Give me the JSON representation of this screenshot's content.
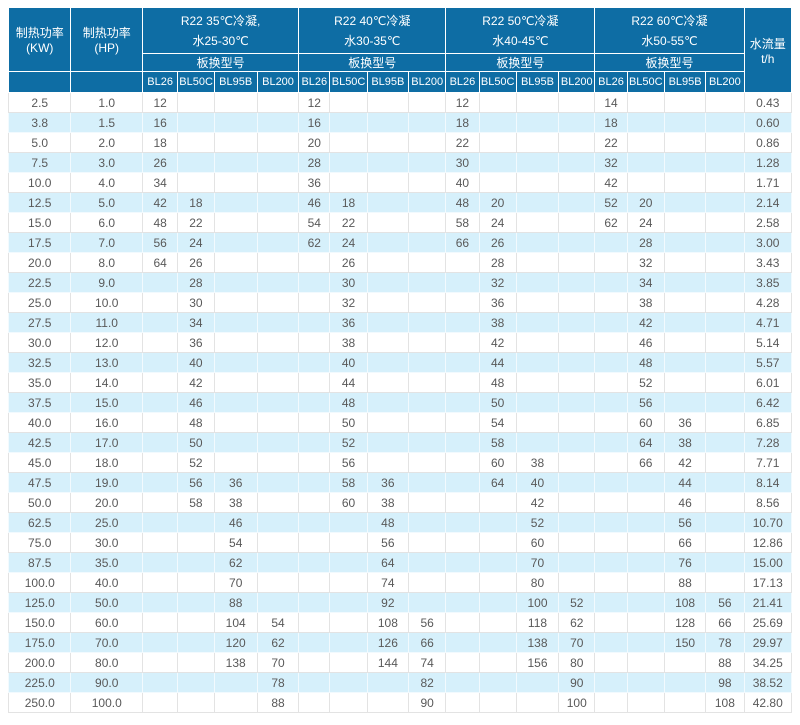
{
  "colors": {
    "header_bg": "#0e6da4",
    "alt_row_bg": "#d6f0fb",
    "grid_line": "#e3e3e3",
    "outer_border": "#c9c9c9",
    "body_text": "#595959"
  },
  "table": {
    "col1_header": "制热功率(KW)",
    "col2_header": "制热功率(HP)",
    "flow_header": "水流量t/h",
    "model_row_label": "板换型号",
    "groups": [
      {
        "title_line1": "R22 35℃冷凝,",
        "title_line2": "水25-30℃"
      },
      {
        "title_line1": "R22 40℃冷凝",
        "title_line2": "水30-35℃"
      },
      {
        "title_line1": "R22 50℃冷凝",
        "title_line2": "水40-45℃"
      },
      {
        "title_line1": "R22 60℃冷凝",
        "title_line2": "水50-55℃"
      }
    ],
    "sub_columns": [
      "BL26",
      "BL50C",
      "BL95B",
      "BL200"
    ],
    "rows": [
      {
        "kw": "2.5",
        "hp": "1.0",
        "g1": [
          "12",
          "",
          "",
          ""
        ],
        "g2": [
          "12",
          "",
          "",
          ""
        ],
        "g3": [
          "12",
          "",
          "",
          ""
        ],
        "g4": [
          "14",
          "",
          "",
          ""
        ],
        "flow": "0.43"
      },
      {
        "kw": "3.8",
        "hp": "1.5",
        "g1": [
          "16",
          "",
          "",
          ""
        ],
        "g2": [
          "16",
          "",
          "",
          ""
        ],
        "g3": [
          "18",
          "",
          "",
          ""
        ],
        "g4": [
          "18",
          "",
          "",
          ""
        ],
        "flow": "0.60"
      },
      {
        "kw": "5.0",
        "hp": "2.0",
        "g1": [
          "18",
          "",
          "",
          ""
        ],
        "g2": [
          "20",
          "",
          "",
          ""
        ],
        "g3": [
          "22",
          "",
          "",
          ""
        ],
        "g4": [
          "22",
          "",
          "",
          ""
        ],
        "flow": "0.86"
      },
      {
        "kw": "7.5",
        "hp": "3.0",
        "g1": [
          "26",
          "",
          "",
          ""
        ],
        "g2": [
          "28",
          "",
          "",
          ""
        ],
        "g3": [
          "30",
          "",
          "",
          ""
        ],
        "g4": [
          "32",
          "",
          "",
          ""
        ],
        "flow": "1.28"
      },
      {
        "kw": "10.0",
        "hp": "4.0",
        "g1": [
          "34",
          "",
          "",
          ""
        ],
        "g2": [
          "36",
          "",
          "",
          ""
        ],
        "g3": [
          "40",
          "",
          "",
          ""
        ],
        "g4": [
          "42",
          "",
          "",
          ""
        ],
        "flow": "1.71"
      },
      {
        "kw": "12.5",
        "hp": "5.0",
        "g1": [
          "42",
          "18",
          "",
          ""
        ],
        "g2": [
          "46",
          "18",
          "",
          ""
        ],
        "g3": [
          "48",
          "20",
          "",
          ""
        ],
        "g4": [
          "52",
          "20",
          "",
          ""
        ],
        "flow": "2.14"
      },
      {
        "kw": "15.0",
        "hp": "6.0",
        "g1": [
          "48",
          "22",
          "",
          ""
        ],
        "g2": [
          "54",
          "22",
          "",
          ""
        ],
        "g3": [
          "58",
          "24",
          "",
          ""
        ],
        "g4": [
          "62",
          "24",
          "",
          ""
        ],
        "flow": "2.58"
      },
      {
        "kw": "17.5",
        "hp": "7.0",
        "g1": [
          "56",
          "24",
          "",
          ""
        ],
        "g2": [
          "62",
          "24",
          "",
          ""
        ],
        "g3": [
          "66",
          "26",
          "",
          ""
        ],
        "g4": [
          "",
          "28",
          "",
          ""
        ],
        "flow": "3.00"
      },
      {
        "kw": "20.0",
        "hp": "8.0",
        "g1": [
          "64",
          "26",
          "",
          ""
        ],
        "g2": [
          "",
          "26",
          "",
          ""
        ],
        "g3": [
          "",
          "28",
          "",
          ""
        ],
        "g4": [
          "",
          "32",
          "",
          ""
        ],
        "flow": "3.43"
      },
      {
        "kw": "22.5",
        "hp": "9.0",
        "g1": [
          "",
          "28",
          "",
          ""
        ],
        "g2": [
          "",
          "30",
          "",
          ""
        ],
        "g3": [
          "",
          "32",
          "",
          ""
        ],
        "g4": [
          "",
          "34",
          "",
          ""
        ],
        "flow": "3.85"
      },
      {
        "kw": "25.0",
        "hp": "10.0",
        "g1": [
          "",
          "30",
          "",
          ""
        ],
        "g2": [
          "",
          "32",
          "",
          ""
        ],
        "g3": [
          "",
          "36",
          "",
          ""
        ],
        "g4": [
          "",
          "38",
          "",
          ""
        ],
        "flow": "4.28"
      },
      {
        "kw": "27.5",
        "hp": "11.0",
        "g1": [
          "",
          "34",
          "",
          ""
        ],
        "g2": [
          "",
          "36",
          "",
          ""
        ],
        "g3": [
          "",
          "38",
          "",
          ""
        ],
        "g4": [
          "",
          "42",
          "",
          ""
        ],
        "flow": "4.71"
      },
      {
        "kw": "30.0",
        "hp": "12.0",
        "g1": [
          "",
          "36",
          "",
          ""
        ],
        "g2": [
          "",
          "38",
          "",
          ""
        ],
        "g3": [
          "",
          "42",
          "",
          ""
        ],
        "g4": [
          "",
          "46",
          "",
          ""
        ],
        "flow": "5.14"
      },
      {
        "kw": "32.5",
        "hp": "13.0",
        "g1": [
          "",
          "40",
          "",
          ""
        ],
        "g2": [
          "",
          "40",
          "",
          ""
        ],
        "g3": [
          "",
          "44",
          "",
          ""
        ],
        "g4": [
          "",
          "48",
          "",
          ""
        ],
        "flow": "5.57"
      },
      {
        "kw": "35.0",
        "hp": "14.0",
        "g1": [
          "",
          "42",
          "",
          ""
        ],
        "g2": [
          "",
          "44",
          "",
          ""
        ],
        "g3": [
          "",
          "48",
          "",
          ""
        ],
        "g4": [
          "",
          "52",
          "",
          ""
        ],
        "flow": "6.01"
      },
      {
        "kw": "37.5",
        "hp": "15.0",
        "g1": [
          "",
          "46",
          "",
          ""
        ],
        "g2": [
          "",
          "48",
          "",
          ""
        ],
        "g3": [
          "",
          "50",
          "",
          ""
        ],
        "g4": [
          "",
          "56",
          "",
          ""
        ],
        "flow": "6.42"
      },
      {
        "kw": "40.0",
        "hp": "16.0",
        "g1": [
          "",
          "48",
          "",
          ""
        ],
        "g2": [
          "",
          "50",
          "",
          ""
        ],
        "g3": [
          "",
          "54",
          "",
          ""
        ],
        "g4": [
          "",
          "60",
          "36",
          ""
        ],
        "flow": "6.85"
      },
      {
        "kw": "42.5",
        "hp": "17.0",
        "g1": [
          "",
          "50",
          "",
          ""
        ],
        "g2": [
          "",
          "52",
          "",
          ""
        ],
        "g3": [
          "",
          "58",
          "",
          ""
        ],
        "g4": [
          "",
          "64",
          "38",
          ""
        ],
        "flow": "7.28"
      },
      {
        "kw": "45.0",
        "hp": "18.0",
        "g1": [
          "",
          "52",
          "",
          ""
        ],
        "g2": [
          "",
          "56",
          "",
          ""
        ],
        "g3": [
          "",
          "60",
          "38",
          ""
        ],
        "g4": [
          "",
          "66",
          "42",
          ""
        ],
        "flow": "7.71"
      },
      {
        "kw": "47.5",
        "hp": "19.0",
        "g1": [
          "",
          "56",
          "36",
          ""
        ],
        "g2": [
          "",
          "58",
          "36",
          ""
        ],
        "g3": [
          "",
          "64",
          "40",
          ""
        ],
        "g4": [
          "",
          "",
          "44",
          ""
        ],
        "flow": "8.14"
      },
      {
        "kw": "50.0",
        "hp": "20.0",
        "g1": [
          "",
          "58",
          "38",
          ""
        ],
        "g2": [
          "",
          "60",
          "38",
          ""
        ],
        "g3": [
          "",
          "",
          "42",
          ""
        ],
        "g4": [
          "",
          "",
          "46",
          ""
        ],
        "flow": "8.56"
      },
      {
        "kw": "62.5",
        "hp": "25.0",
        "g1": [
          "",
          "",
          "46",
          ""
        ],
        "g2": [
          "",
          "",
          "48",
          ""
        ],
        "g3": [
          "",
          "",
          "52",
          ""
        ],
        "g4": [
          "",
          "",
          "56",
          ""
        ],
        "flow": "10.70"
      },
      {
        "kw": "75.0",
        "hp": "30.0",
        "g1": [
          "",
          "",
          "54",
          ""
        ],
        "g2": [
          "",
          "",
          "56",
          ""
        ],
        "g3": [
          "",
          "",
          "60",
          ""
        ],
        "g4": [
          "",
          "",
          "66",
          ""
        ],
        "flow": "12.86"
      },
      {
        "kw": "87.5",
        "hp": "35.0",
        "g1": [
          "",
          "",
          "62",
          ""
        ],
        "g2": [
          "",
          "",
          "64",
          ""
        ],
        "g3": [
          "",
          "",
          "70",
          ""
        ],
        "g4": [
          "",
          "",
          "76",
          ""
        ],
        "flow": "15.00"
      },
      {
        "kw": "100.0",
        "hp": "40.0",
        "g1": [
          "",
          "",
          "70",
          ""
        ],
        "g2": [
          "",
          "",
          "74",
          ""
        ],
        "g3": [
          "",
          "",
          "80",
          ""
        ],
        "g4": [
          "",
          "",
          "88",
          ""
        ],
        "flow": "17.13"
      },
      {
        "kw": "125.0",
        "hp": "50.0",
        "g1": [
          "",
          "",
          "88",
          ""
        ],
        "g2": [
          "",
          "",
          "92",
          ""
        ],
        "g3": [
          "",
          "",
          "100",
          "52"
        ],
        "g4": [
          "",
          "",
          "108",
          "56"
        ],
        "flow": "21.41"
      },
      {
        "kw": "150.0",
        "hp": "60.0",
        "g1": [
          "",
          "",
          "104",
          "54"
        ],
        "g2": [
          "",
          "",
          "108",
          "56"
        ],
        "g3": [
          "",
          "",
          "118",
          "62"
        ],
        "g4": [
          "",
          "",
          "128",
          "66"
        ],
        "flow": "25.69"
      },
      {
        "kw": "175.0",
        "hp": "70.0",
        "g1": [
          "",
          "",
          "120",
          "62"
        ],
        "g2": [
          "",
          "",
          "126",
          "66"
        ],
        "g3": [
          "",
          "",
          "138",
          "70"
        ],
        "g4": [
          "",
          "",
          "150",
          "78"
        ],
        "flow": "29.97"
      },
      {
        "kw": "200.0",
        "hp": "80.0",
        "g1": [
          "",
          "",
          "138",
          "70"
        ],
        "g2": [
          "",
          "",
          "144",
          "74"
        ],
        "g3": [
          "",
          "",
          "156",
          "80"
        ],
        "g4": [
          "",
          "",
          "",
          "88"
        ],
        "flow": "34.25"
      },
      {
        "kw": "225.0",
        "hp": "90.0",
        "g1": [
          "",
          "",
          "",
          "78"
        ],
        "g2": [
          "",
          "",
          "",
          "82"
        ],
        "g3": [
          "",
          "",
          "",
          "90"
        ],
        "g4": [
          "",
          "",
          "",
          "98"
        ],
        "flow": "38.52"
      },
      {
        "kw": "250.0",
        "hp": "100.0",
        "g1": [
          "",
          "",
          "",
          "88"
        ],
        "g2": [
          "",
          "",
          "",
          "90"
        ],
        "g3": [
          "",
          "",
          "",
          "100"
        ],
        "g4": [
          "",
          "",
          "",
          "108"
        ],
        "flow": "42.80"
      }
    ]
  }
}
